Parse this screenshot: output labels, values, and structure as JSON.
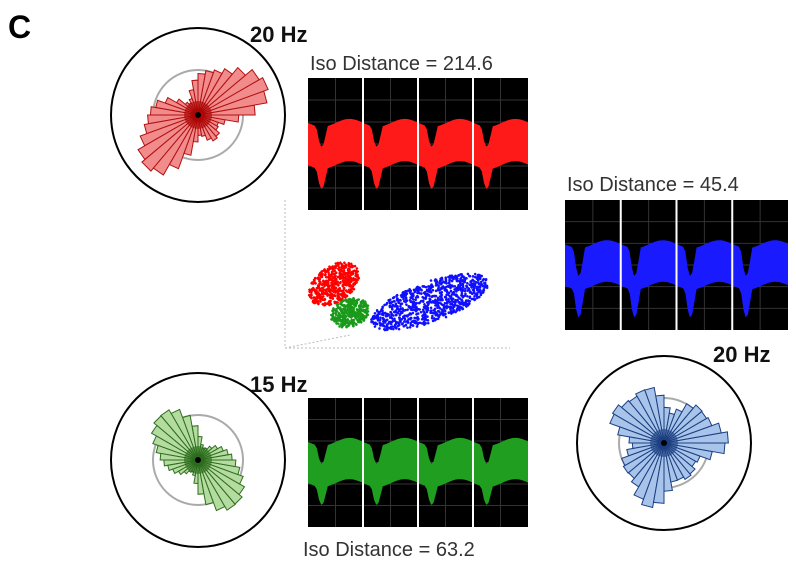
{
  "panel_label": "C",
  "units": [
    {
      "rate_label": "20 Hz",
      "iso_label": "Iso Distance = 214.6"
    },
    {
      "rate_label": "20 Hz",
      "iso_label": "Iso Distance = 45.4"
    },
    {
      "rate_label": "15 Hz",
      "iso_label": "Iso Distance = 63.2"
    }
  ]
}
